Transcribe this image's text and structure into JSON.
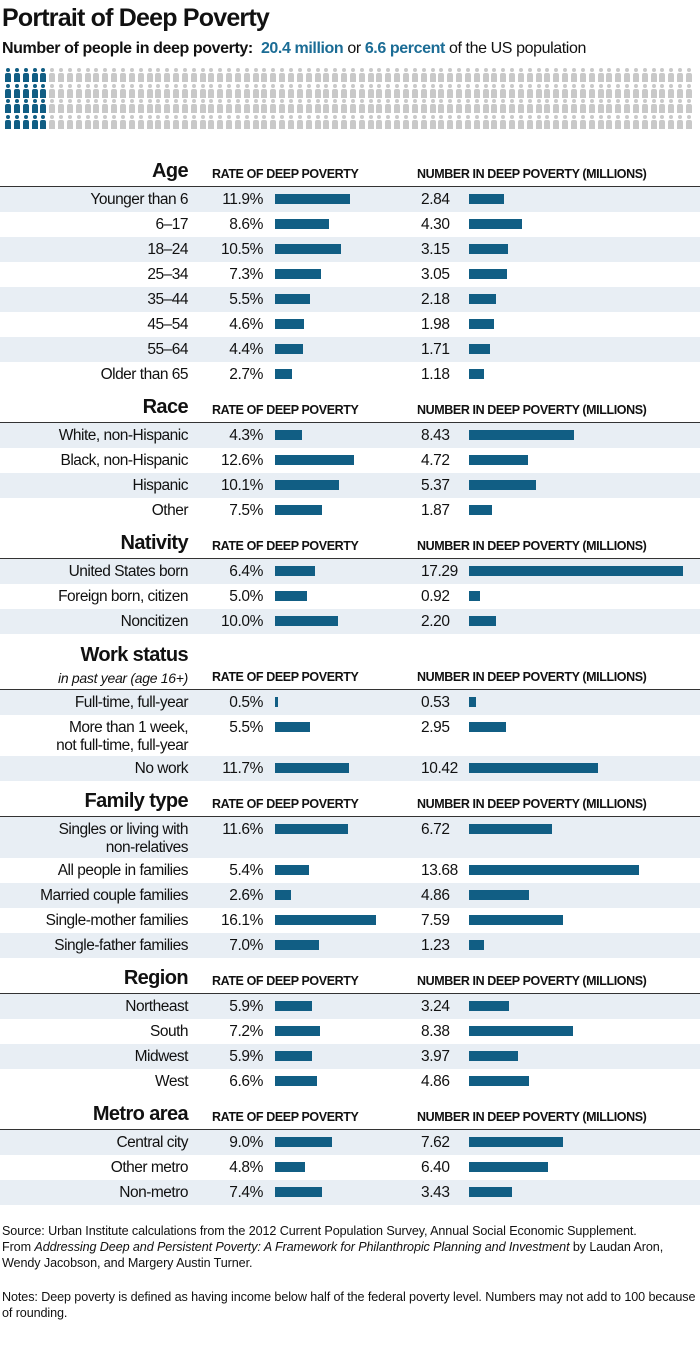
{
  "title": "Portrait of Deep Poverty",
  "subtitle": {
    "label": "Number of people in deep poverty:",
    "millions": "20.4 million",
    "or": "or",
    "percent": "6.6 percent",
    "tail": "of the US population"
  },
  "colors": {
    "accent": "#115e84",
    "icon_inactive": "#c9c9c9",
    "row_shade": "#e8eef4"
  },
  "column_headers": {
    "rate": "RATE OF DEEP POVERTY",
    "number": "NUMBER IN DEEP POVERTY (MILLIONS)"
  },
  "chart_data": {
    "type": "bar",
    "orientation": "horizontal",
    "series_labels": [
      "RATE OF DEEP POVERTY",
      "NUMBER IN DEEP POVERTY (MILLIONS)"
    ],
    "sections": [
      {
        "title": "Age",
        "rows": [
          {
            "label": "Younger than 6",
            "rate": "11.9%",
            "rate_value": 11.9,
            "number": "2.84",
            "number_value": 2.84
          },
          {
            "label": "6–17",
            "rate": "8.6%",
            "rate_value": 8.6,
            "number": "4.30",
            "number_value": 4.3
          },
          {
            "label": "18–24",
            "rate": "10.5%",
            "rate_value": 10.5,
            "number": "3.15",
            "number_value": 3.15
          },
          {
            "label": "25–34",
            "rate": "7.3%",
            "rate_value": 7.3,
            "number": "3.05",
            "number_value": 3.05
          },
          {
            "label": "35–44",
            "rate": "5.5%",
            "rate_value": 5.5,
            "number": "2.18",
            "number_value": 2.18
          },
          {
            "label": "45–54",
            "rate": "4.6%",
            "rate_value": 4.6,
            "number": "1.98",
            "number_value": 1.98
          },
          {
            "label": "55–64",
            "rate": "4.4%",
            "rate_value": 4.4,
            "number": "1.71",
            "number_value": 1.71
          },
          {
            "label": "Older than 65",
            "rate": "2.7%",
            "rate_value": 2.7,
            "number": "1.18",
            "number_value": 1.18
          }
        ]
      },
      {
        "title": "Race",
        "rows": [
          {
            "label": "White, non-Hispanic",
            "rate": "4.3%",
            "rate_value": 4.3,
            "number": "8.43",
            "number_value": 8.43
          },
          {
            "label": "Black, non-Hispanic",
            "rate": "12.6%",
            "rate_value": 12.6,
            "number": "4.72",
            "number_value": 4.72
          },
          {
            "label": "Hispanic",
            "rate": "10.1%",
            "rate_value": 10.1,
            "number": "5.37",
            "number_value": 5.37
          },
          {
            "label": "Other",
            "rate": "7.5%",
            "rate_value": 7.5,
            "number": "1.87",
            "number_value": 1.87
          }
        ]
      },
      {
        "title": "Nativity",
        "rows": [
          {
            "label": "United States born",
            "rate": "6.4%",
            "rate_value": 6.4,
            "number": "17.29",
            "number_value": 17.29
          },
          {
            "label": "Foreign born, citizen",
            "rate": "5.0%",
            "rate_value": 5.0,
            "number": "0.92",
            "number_value": 0.92
          },
          {
            "label": "Noncitizen",
            "rate": "10.0%",
            "rate_value": 10.0,
            "number": "2.20",
            "number_value": 2.2
          }
        ]
      },
      {
        "title": "Work status",
        "subtitle": "in past year (age 16+)",
        "rows": [
          {
            "label": "Full-time, full-year",
            "rate": "0.5%",
            "rate_value": 0.5,
            "number": "0.53",
            "number_value": 0.53
          },
          {
            "label": "More than 1 week,",
            "label2": "not full-time, full-year",
            "rate": "5.5%",
            "rate_value": 5.5,
            "number": "2.95",
            "number_value": 2.95
          },
          {
            "label": "No work",
            "rate": "11.7%",
            "rate_value": 11.7,
            "number": "10.42",
            "number_value": 10.42
          }
        ]
      },
      {
        "title": "Family type",
        "rows": [
          {
            "label": "Singles or living with",
            "label2": "non-relatives",
            "rate": "11.6%",
            "rate_value": 11.6,
            "number": "6.72",
            "number_value": 6.72
          },
          {
            "label": "All people in families",
            "rate": "5.4%",
            "rate_value": 5.4,
            "number": "13.68",
            "number_value": 13.68
          },
          {
            "label": "Married couple families",
            "rate": "2.6%",
            "rate_value": 2.6,
            "number": "4.86",
            "number_value": 4.86
          },
          {
            "label": "Single-mother families",
            "rate": "16.1%",
            "rate_value": 16.1,
            "number": "7.59",
            "number_value": 7.59
          },
          {
            "label": "Single-father families",
            "rate": "7.0%",
            "rate_value": 7.0,
            "number": "1.23",
            "number_value": 1.23
          }
        ]
      },
      {
        "title": "Region",
        "rows": [
          {
            "label": "Northeast",
            "rate": "5.9%",
            "rate_value": 5.9,
            "number": "3.24",
            "number_value": 3.24
          },
          {
            "label": "South",
            "rate": "7.2%",
            "rate_value": 7.2,
            "number": "8.38",
            "number_value": 8.38
          },
          {
            "label": "Midwest",
            "rate": "5.9%",
            "rate_value": 5.9,
            "number": "3.97",
            "number_value": 3.97
          },
          {
            "label": "West",
            "rate": "6.6%",
            "rate_value": 6.6,
            "number": "4.86",
            "number_value": 4.86
          }
        ]
      },
      {
        "title": "Metro area",
        "rows": [
          {
            "label": "Central city",
            "rate": "9.0%",
            "rate_value": 9.0,
            "number": "7.62",
            "number_value": 7.62
          },
          {
            "label": "Other metro",
            "rate": "4.8%",
            "rate_value": 4.8,
            "number": "6.40",
            "number_value": 6.4
          },
          {
            "label": "Non-metro",
            "rate": "7.4%",
            "rate_value": 7.4,
            "number": "3.43",
            "number_value": 3.43
          }
        ]
      }
    ]
  },
  "footer": {
    "source": "Source: Urban Institute calculations from the 2012 Current Population Survey, Annual Social Economic Supplement.",
    "from_prefix": "From ",
    "from_title": "Addressing Deep and Persistent Poverty: A Framework for Philanthropic Planning and Investment",
    "from_suffix": " by Laudan Aron, Wendy Jacobson, and Margery Austin Turner.",
    "notes": "Notes: Deep poverty is defined as having income below half of the federal poverty level. Numbers may not add to 100 because of rounding."
  }
}
